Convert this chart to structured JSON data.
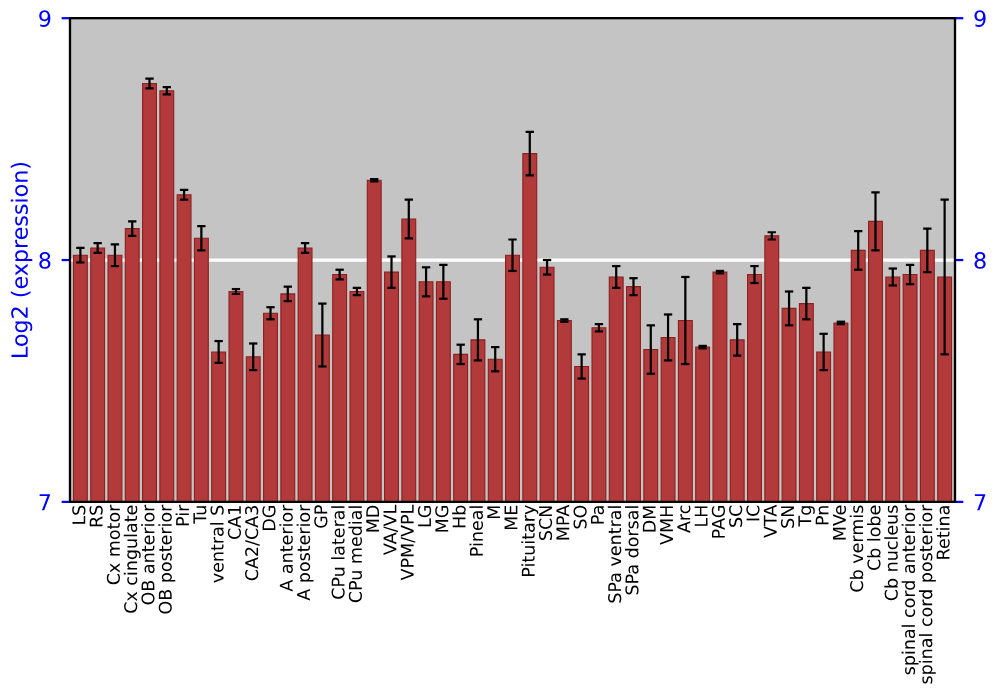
{
  "chart_data": {
    "type": "bar",
    "ylabel": "Log2 (expression)",
    "categories": [
      "LS",
      "RS",
      "Cx motor",
      "Cx cingulate",
      "OB anterior",
      "OB posterior",
      "Pir",
      "Tu",
      "ventral S",
      "CA1",
      "CA2/CA3",
      "DG",
      "A anterior",
      "A posterior",
      "GP",
      "CPu lateral",
      "CPu medial",
      "MD",
      "VA/VL",
      "VPM/VPL",
      "LG",
      "MG",
      "Hb",
      "Pineal",
      "M",
      "ME",
      "Pituitary",
      "SCN",
      "MPA",
      "SO",
      "Pa",
      "SPa ventral",
      "SPa dorsal",
      "DM",
      "VMH",
      "Arc",
      "LH",
      "PAG",
      "SC",
      "IC",
      "VTA",
      "SN",
      "Tg",
      "Pn",
      "MVe",
      "Cb vermis",
      "Cb lobe",
      "Cb nucleus",
      "spinal cord anterior",
      "spinal cord posterior",
      "Retina"
    ],
    "values": [
      8.02,
      8.05,
      8.02,
      8.13,
      8.73,
      8.7,
      8.27,
      8.09,
      7.62,
      7.87,
      7.6,
      7.78,
      7.86,
      8.05,
      7.69,
      7.94,
      7.87,
      8.33,
      7.95,
      8.17,
      7.91,
      7.91,
      7.61,
      7.67,
      7.59,
      8.02,
      8.44,
      7.97,
      7.75,
      7.56,
      7.72,
      7.93,
      7.89,
      7.63,
      7.68,
      7.75,
      7.64,
      7.95,
      7.67,
      7.94,
      8.1,
      7.8,
      7.82,
      7.62,
      7.74,
      8.04,
      8.16,
      7.93,
      7.94,
      8.04,
      7.93
    ],
    "errors": [
      0.03,
      0.02,
      0.045,
      0.03,
      0.02,
      0.015,
      0.02,
      0.05,
      0.045,
      0.01,
      0.055,
      0.025,
      0.03,
      0.02,
      0.13,
      0.02,
      0.015,
      0.005,
      0.065,
      0.08,
      0.06,
      0.07,
      0.04,
      0.085,
      0.05,
      0.065,
      0.09,
      0.03,
      0.005,
      0.05,
      0.015,
      0.045,
      0.035,
      0.1,
      0.095,
      0.18,
      0.005,
      0.005,
      0.065,
      0.035,
      0.015,
      0.07,
      0.065,
      0.075,
      0.005,
      0.08,
      0.12,
      0.035,
      0.04,
      0.09,
      0.32
    ],
    "color": "#b33a3a",
    "ylim": [
      7,
      9
    ],
    "yticks": [
      7,
      8,
      9
    ],
    "y2lim": [
      7,
      9
    ],
    "y2ticks": [
      7,
      8,
      9
    ],
    "ref_lines": [
      {
        "axis": "y",
        "value": 8,
        "color": "#ffffff"
      }
    ]
  }
}
